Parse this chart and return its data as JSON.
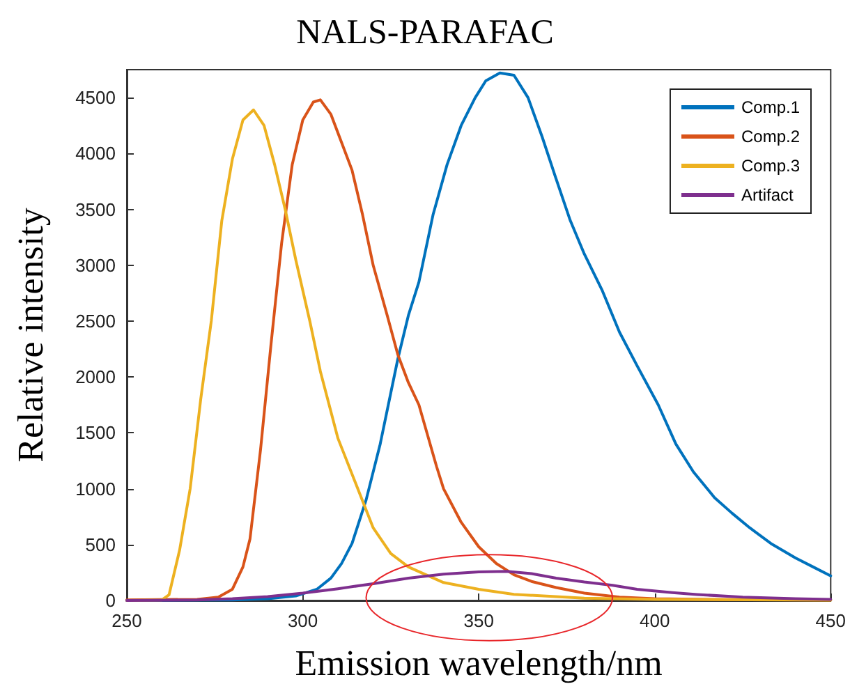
{
  "chart_data": {
    "type": "line",
    "title": "NALS-PARAFAC",
    "xlabel": "Emission wavelength/nm",
    "ylabel": "Relative intensity",
    "xlim": [
      250,
      450
    ],
    "xticks": [
      250,
      300,
      350,
      400,
      450
    ],
    "ylim": [
      0,
      4750
    ],
    "yticks": [
      0,
      500,
      1000,
      1500,
      2000,
      2500,
      3000,
      3500,
      4000,
      4500
    ],
    "grid": false,
    "legend": "top right",
    "marker": "none",
    "line_style": "solid",
    "series": [
      {
        "name": "Comp.1",
        "color": "#0072bd",
        "x": [
          250,
          280,
          290,
          298,
          304,
          308,
          311,
          314,
          318,
          322,
          327,
          330,
          333,
          337,
          341,
          345,
          349,
          352,
          356,
          360,
          364,
          368,
          372,
          376,
          380,
          385,
          390,
          395,
          401,
          406,
          411,
          417,
          422,
          427,
          433,
          440,
          445,
          450
        ],
        "values": [
          0,
          5,
          15,
          40,
          100,
          200,
          330,
          510,
          900,
          1400,
          2160,
          2550,
          2850,
          3450,
          3900,
          4250,
          4500,
          4650,
          4720,
          4700,
          4500,
          4150,
          3770,
          3400,
          3100,
          2780,
          2400,
          2100,
          1750,
          1400,
          1150,
          920,
          780,
          650,
          510,
          380,
          300,
          220
        ]
      },
      {
        "name": "Comp.2",
        "color": "#d95319",
        "x": [
          250,
          270,
          276,
          280,
          283,
          285,
          288,
          291,
          294,
          297,
          300,
          303,
          305,
          308,
          311,
          314,
          317,
          320,
          324,
          327,
          330,
          333,
          338,
          340,
          345,
          350,
          355,
          360,
          365,
          372,
          380,
          390,
          400,
          420,
          450
        ],
        "values": [
          5,
          10,
          30,
          100,
          300,
          550,
          1350,
          2300,
          3200,
          3900,
          4300,
          4460,
          4480,
          4350,
          4100,
          3850,
          3450,
          3000,
          2550,
          2200,
          1950,
          1750,
          1200,
          1000,
          700,
          480,
          330,
          230,
          170,
          115,
          65,
          30,
          15,
          8,
          5
        ]
      },
      {
        "name": "Comp.3",
        "color": "#edb120",
        "x": [
          250,
          260,
          262,
          265,
          268,
          271,
          274,
          277,
          280,
          283,
          286,
          289,
          292,
          295,
          298,
          302,
          305,
          310,
          315,
          320,
          325,
          330,
          340,
          350,
          360,
          380,
          400,
          450
        ],
        "values": [
          0,
          5,
          50,
          450,
          1000,
          1800,
          2500,
          3400,
          3950,
          4300,
          4390,
          4250,
          3900,
          3500,
          3050,
          2500,
          2050,
          1450,
          1050,
          650,
          420,
          300,
          160,
          100,
          55,
          20,
          10,
          3
        ]
      },
      {
        "name": "Artifact",
        "color": "#7e2f8e",
        "x": [
          250,
          270,
          280,
          290,
          300,
          310,
          320,
          330,
          340,
          350,
          358,
          365,
          372,
          380,
          388,
          395,
          405,
          412,
          425,
          440,
          450
        ],
        "values": [
          0,
          5,
          15,
          35,
          65,
          105,
          150,
          200,
          235,
          255,
          260,
          240,
          200,
          165,
          136,
          100,
          70,
          53,
          30,
          15,
          10
        ]
      }
    ]
  }
}
